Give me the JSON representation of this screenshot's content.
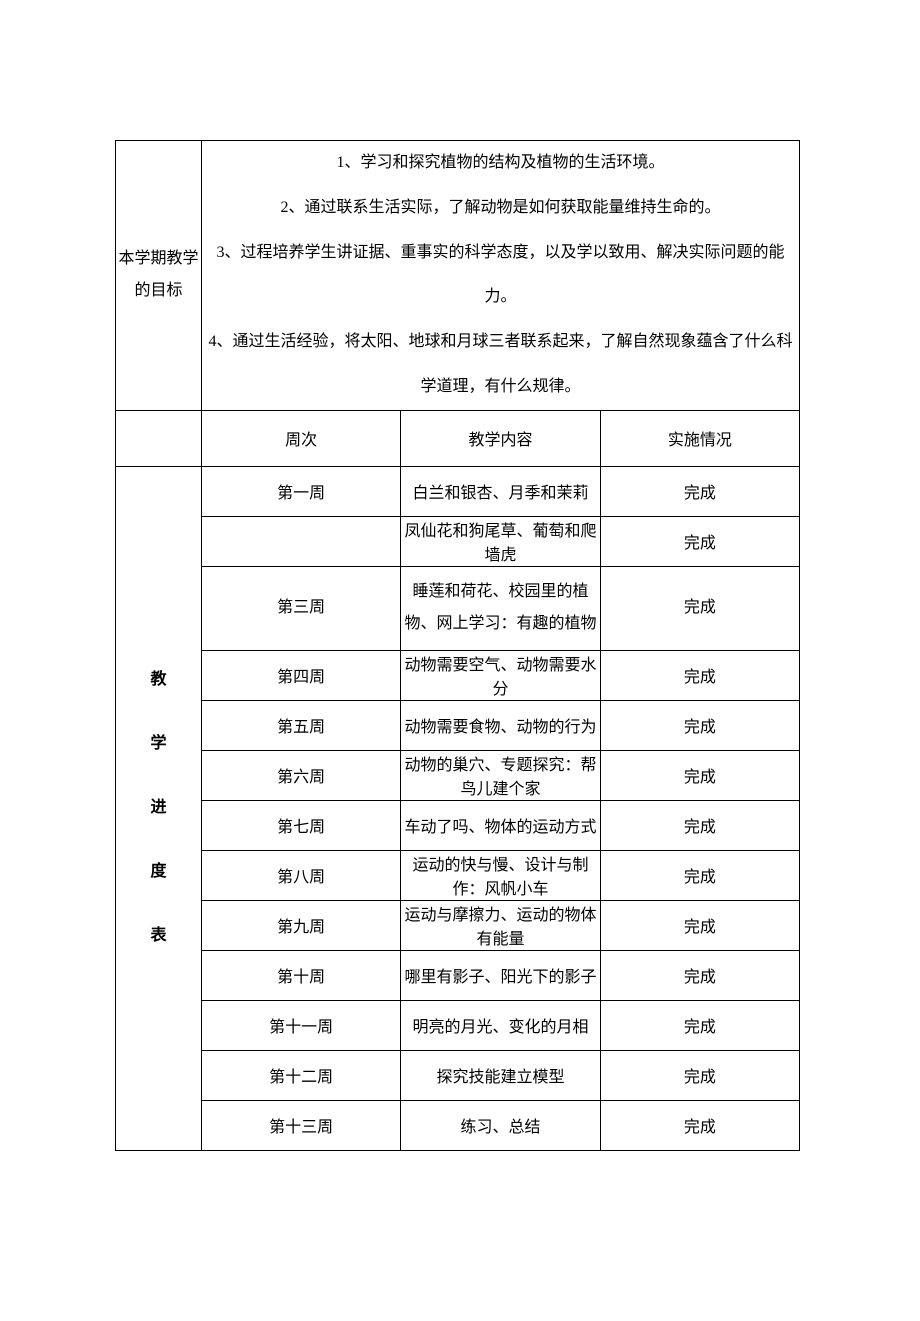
{
  "goals": {
    "label": "本学期教学的目标",
    "items": [
      "1、学习和探究植物的结构及植物的生活环境。",
      "2、通过联系生活实际，了解动物是如何获取能量维持生命的。",
      "3、过程培养学生讲证据、重事实的科学态度，以及学以致用、解决实际问题的能力。",
      "4、通过生活经验，将太阳、地球和月球三者联系起来，了解自然现象蕴含了什么科学道理，有什么规律。"
    ]
  },
  "schedule": {
    "side_label_chars": [
      "教",
      "学",
      "进",
      "度",
      "表"
    ],
    "header": {
      "week": "周次",
      "content": "教学内容",
      "status": "实施情况"
    },
    "rows": [
      {
        "week": "第一周",
        "content": "白兰和银杏、月季和茉莉",
        "status": "完成"
      },
      {
        "week": "",
        "content": "凤仙花和狗尾草、葡萄和爬墙虎",
        "status": "完成"
      },
      {
        "week": "第三周",
        "content": "睡莲和荷花、校园里的植物、网上学习：有趣的植物",
        "status": "完成",
        "tall": true
      },
      {
        "week": "第四周",
        "content": "动物需要空气、动物需要水分",
        "status": "完成"
      },
      {
        "week": "第五周",
        "content": "动物需要食物、动物的行为",
        "status": "完成"
      },
      {
        "week": "第六周",
        "content": "动物的巢穴、专题探究：帮鸟儿建个家",
        "status": "完成"
      },
      {
        "week": "第七周",
        "content": "车动了吗、物体的运动方式",
        "status": "完成"
      },
      {
        "week": "第八周",
        "content": "运动的快与慢、设计与制作：风帆小车",
        "status": "完成"
      },
      {
        "week": "第九周",
        "content": "运动与摩擦力、运动的物体有能量",
        "status": "完成"
      },
      {
        "week": "第十周",
        "content": "哪里有影子、阳光下的影子",
        "status": "完成"
      },
      {
        "week": "第十一周",
        "content": "明亮的月光、变化的月相",
        "status": "完成"
      },
      {
        "week": "第十二周",
        "content": "探究技能建立模型",
        "status": "完成"
      },
      {
        "week": "第十三周",
        "content": "练习、总结",
        "status": "完成"
      }
    ]
  }
}
